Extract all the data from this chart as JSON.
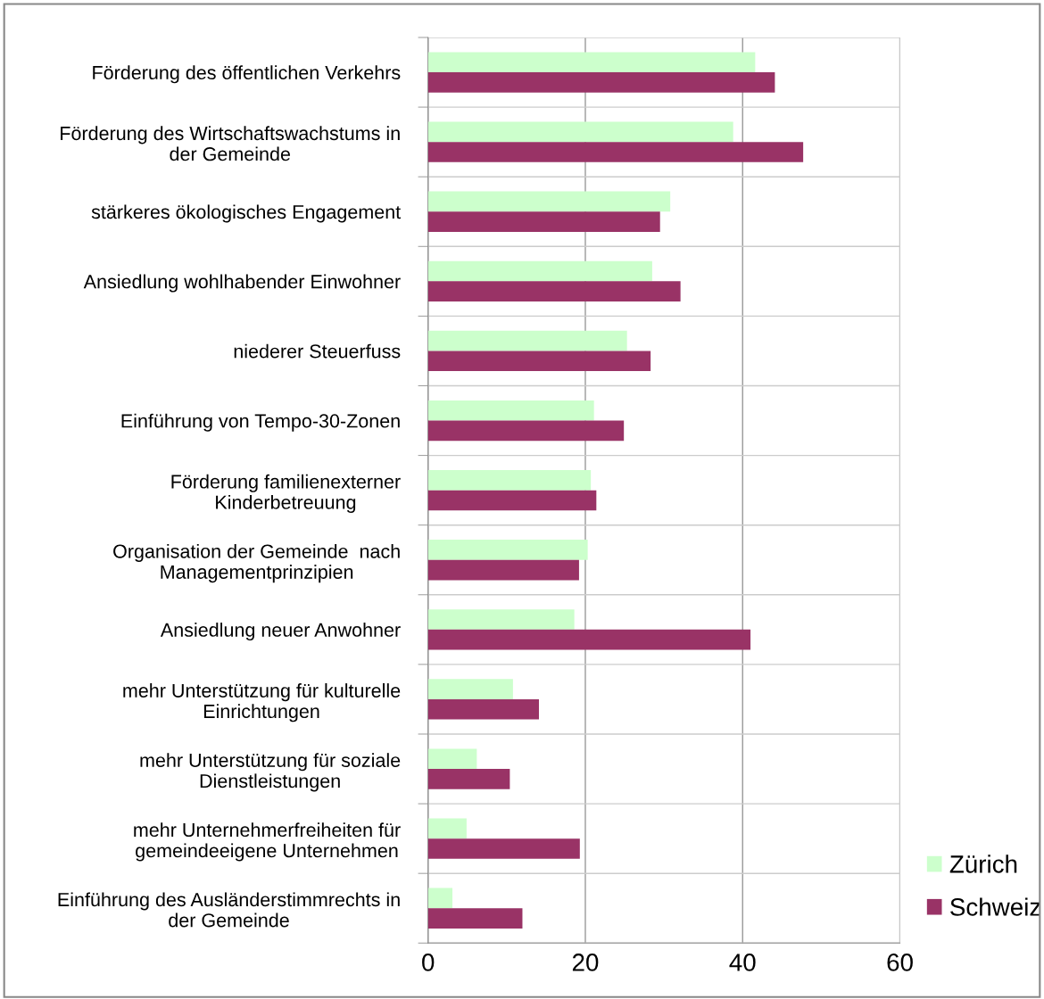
{
  "chart_data": {
    "type": "bar",
    "orientation": "horizontal",
    "categories": [
      "Förderung des öffentlichen Verkehrs",
      "Förderung des Wirtschaftswachstums in\nder Gemeinde",
      "stärkeres ökologisches Engagement",
      "Ansiedlung wohlhabender Einwohner",
      "niederer Steuerfuss",
      "Einführung von Tempo-30-Zonen",
      "Förderung familienexterner\nKinderbetreuung",
      "Organisation der Gemeinde  nach\nManagementprinzipien",
      "Ansiedlung neuer Anwohner",
      "mehr Unterstützung für kulturelle\nEinrichtungen",
      "mehr Unterstützung für soziale\nDienstleistungen",
      "mehr Unternehmerfreiheiten für\ngemeindeeigene Unternehmen",
      "Einführung des Ausländerstimmrechts in\nder Gemeinde"
    ],
    "series": [
      {
        "name": "Zürich",
        "color": "#ccffcc",
        "values": [
          41.6,
          38.8,
          30.8,
          28.5,
          25.3,
          21.1,
          20.7,
          20.3,
          18.6,
          10.8,
          6.2,
          4.9,
          3.1
        ]
      },
      {
        "name": "Schweiz",
        "color": "#993366",
        "values": [
          44.1,
          47.7,
          29.5,
          32.1,
          28.3,
          24.9,
          21.4,
          19.2,
          41.0,
          14.1,
          10.4,
          19.3,
          12.0
        ]
      }
    ],
    "xlim": [
      0,
      60
    ],
    "xticks": [
      0,
      20,
      40,
      60
    ],
    "grid": true,
    "legend": "bottom right"
  }
}
